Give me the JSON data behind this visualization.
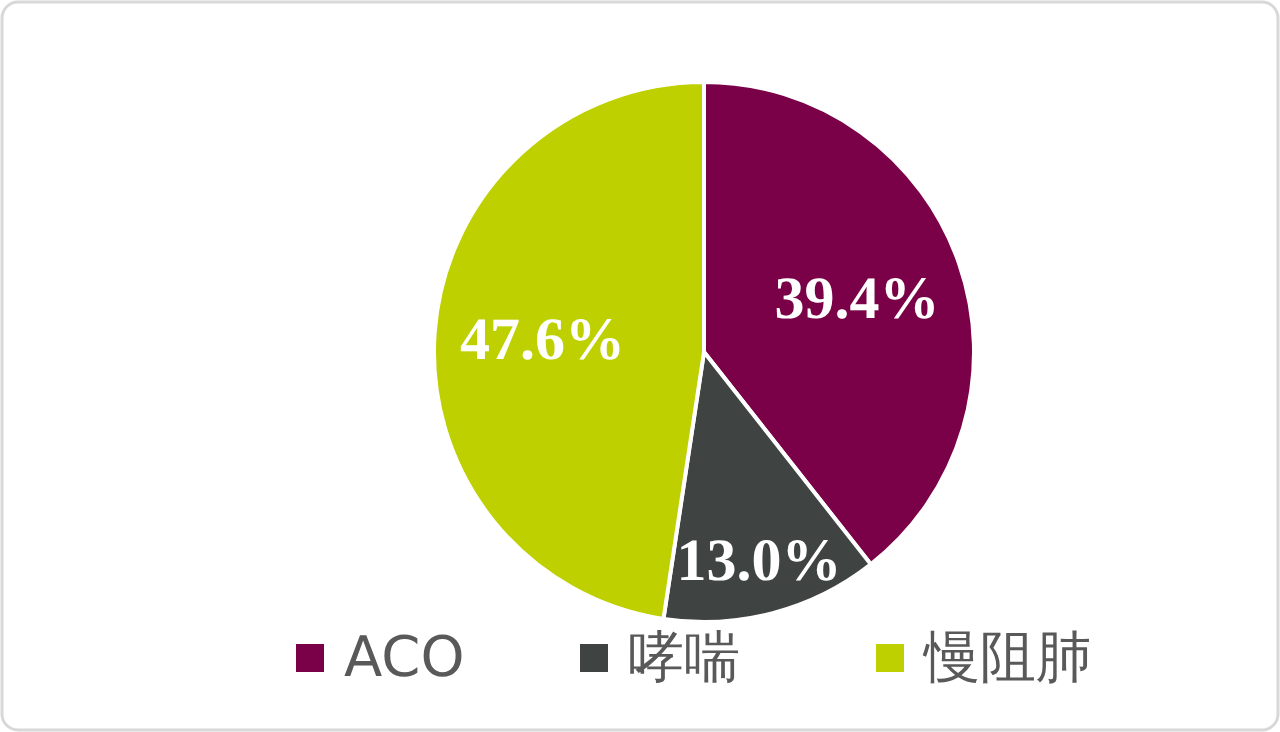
{
  "chart_data": {
    "type": "pie",
    "categories": [
      "ACO",
      "哮喘",
      "慢阻肺"
    ],
    "values": [
      39.4,
      13.0,
      47.6
    ],
    "colors": [
      "#7a0048",
      "#3f4443",
      "#bfd000"
    ],
    "value_labels": [
      "39.4%",
      "13.0%",
      "47.6%"
    ],
    "legend": "bottom"
  }
}
